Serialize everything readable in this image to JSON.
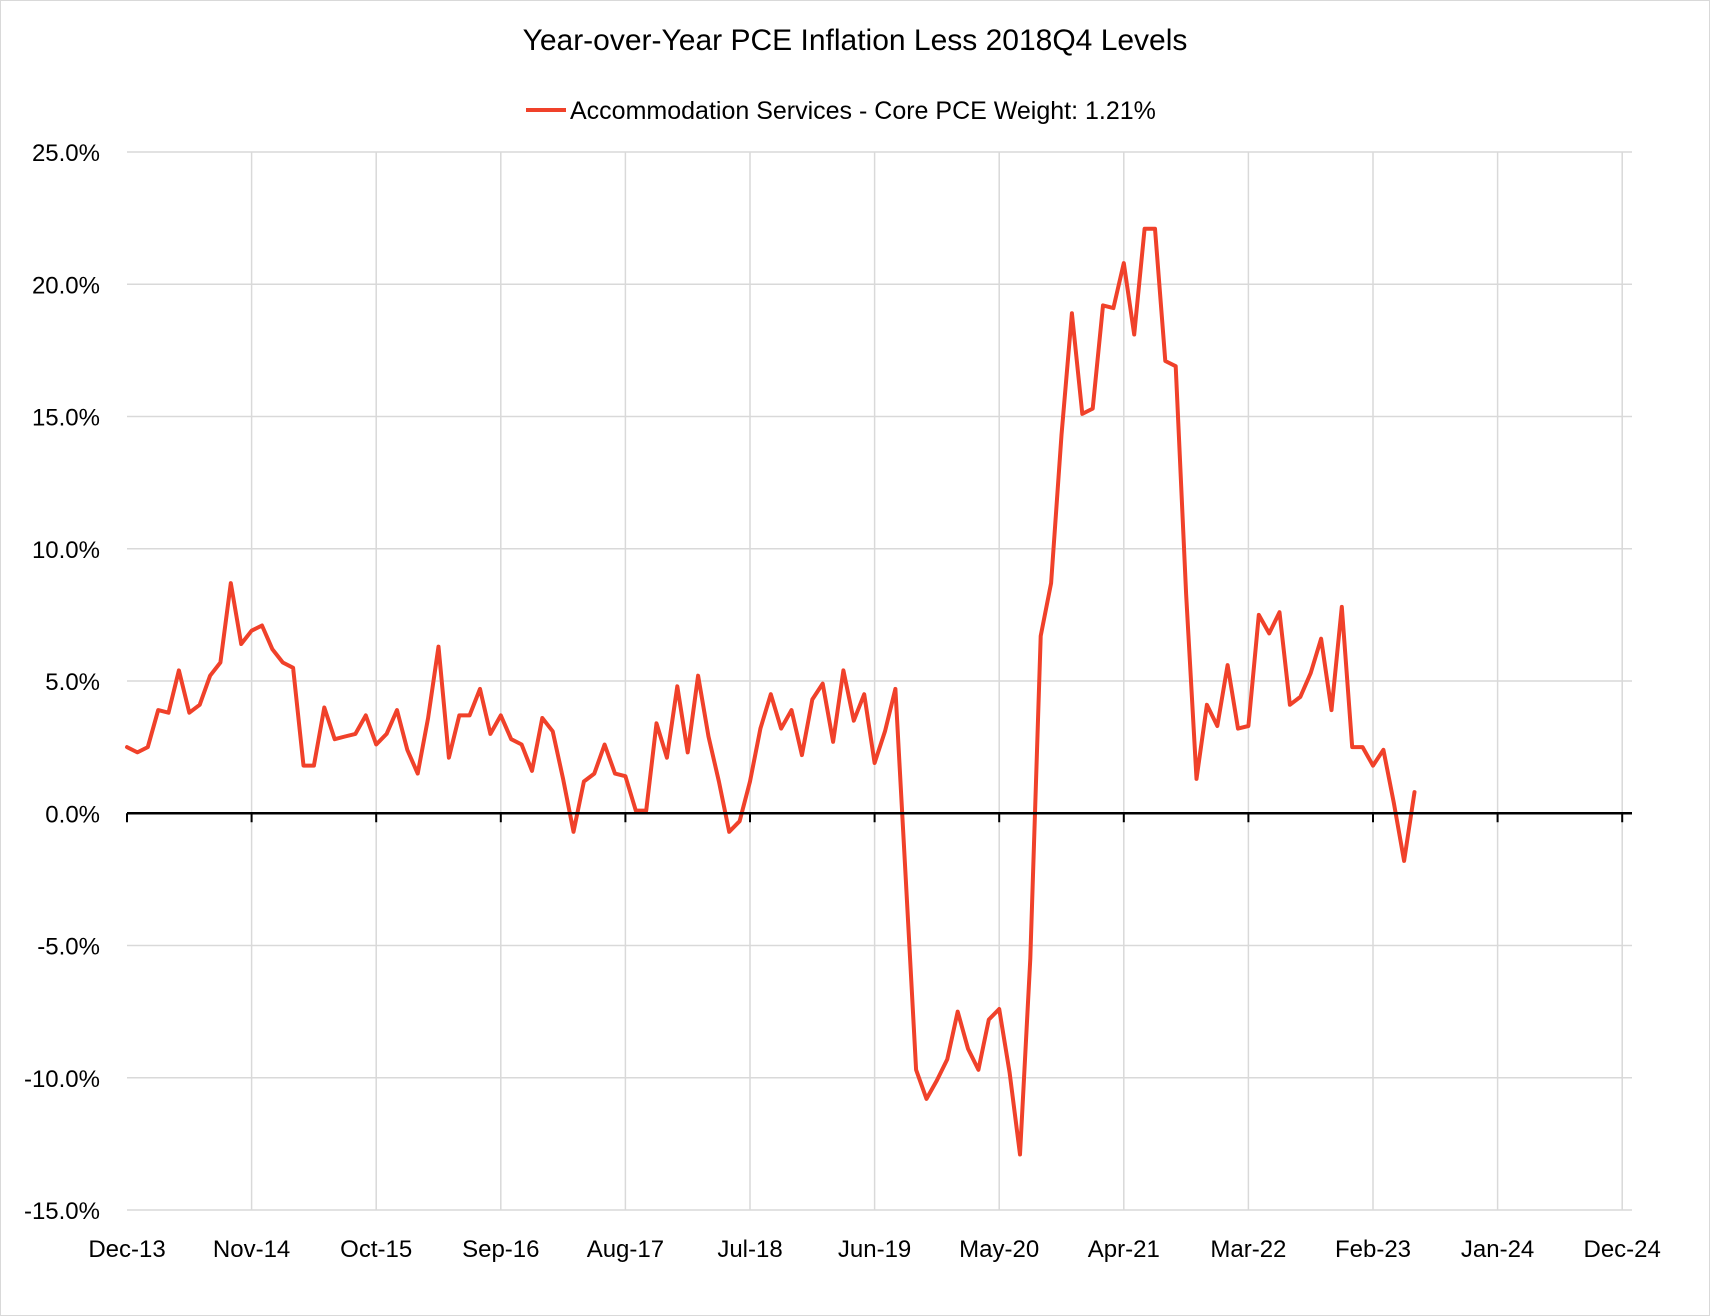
{
  "chart_data": {
    "type": "line",
    "title": "Year-over-Year PCE Inflation Less 2018Q4 Levels",
    "xlabel": "",
    "ylabel": "",
    "legend_position": "top",
    "grid": true,
    "colors": {
      "series": "#f0412a",
      "grid": "#d9d9d9",
      "axis": "#000000"
    },
    "ylim": [
      -15,
      25
    ],
    "y_ticks": [
      "25.0%",
      "20.0%",
      "15.0%",
      "10.0%",
      "5.0%",
      "0.0%",
      "-5.0%",
      "-10.0%",
      "-15.0%"
    ],
    "y_tick_values": [
      25,
      20,
      15,
      10,
      5,
      0,
      -5,
      -10,
      -15
    ],
    "x_ticks": [
      "Dec-13",
      "Nov-14",
      "Oct-15",
      "Sep-16",
      "Aug-17",
      "Jul-18",
      "Jun-19",
      "May-20",
      "Apr-21",
      "Mar-22",
      "Feb-23",
      "Jan-24",
      "Dec-24"
    ],
    "x_start": "Dec-13",
    "x_step": "1 month",
    "series": [
      {
        "name": "Accommodation Services - Core PCE Weight: 1.21%",
        "values": [
          2.5,
          2.3,
          2.5,
          3.9,
          3.8,
          5.4,
          3.8,
          4.1,
          5.2,
          5.7,
          8.7,
          6.4,
          6.9,
          7.1,
          6.2,
          5.7,
          5.5,
          1.8,
          1.8,
          4.0,
          2.8,
          2.9,
          3.0,
          3.7,
          2.6,
          3.0,
          3.9,
          2.4,
          1.5,
          3.6,
          6.3,
          2.1,
          3.7,
          3.7,
          4.7,
          3.0,
          3.7,
          2.8,
          2.6,
          1.6,
          3.6,
          3.1,
          1.3,
          -0.7,
          1.2,
          1.5,
          2.6,
          1.5,
          1.4,
          0.1,
          0.1,
          3.4,
          2.1,
          4.8,
          2.3,
          5.2,
          2.9,
          1.2,
          -0.7,
          -0.3,
          1.2,
          3.2,
          4.5,
          3.2,
          3.9,
          2.2,
          4.3,
          4.9,
          2.7,
          5.4,
          3.5,
          4.5,
          1.9,
          3.1,
          4.7,
          -2.5,
          -9.7,
          -10.8,
          -10.1,
          -9.3,
          -7.5,
          -8.9,
          -9.7,
          -7.8,
          -7.4,
          -9.8,
          -12.9,
          -5.5,
          6.7,
          8.7,
          14.3,
          18.9,
          15.1,
          15.3,
          19.2,
          19.1,
          20.8,
          18.1,
          22.1,
          22.1,
          17.1,
          16.9,
          8.3,
          1.3,
          4.1,
          3.3,
          5.6,
          3.2,
          3.3,
          7.5,
          6.8,
          7.6,
          4.1,
          4.4,
          5.3,
          6.6,
          3.9,
          7.8,
          2.5,
          2.5,
          1.8,
          2.4,
          0.4,
          -1.8,
          0.8
        ]
      }
    ]
  }
}
